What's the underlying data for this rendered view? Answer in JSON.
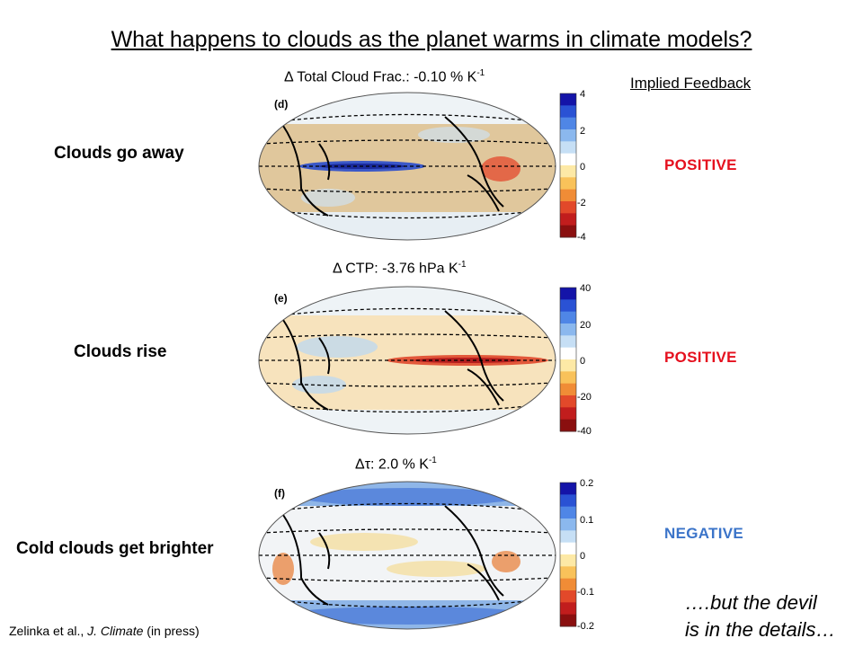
{
  "title": "What happens to clouds as the planet warms in climate models?",
  "implied_feedback_heading": "Implied Feedback",
  "panels": [
    {
      "tag": "(d)",
      "label": "Clouds go away",
      "delta_text": "Δ Total Cloud Frac.: -0.10 % K",
      "delta_exp": "-1",
      "feedback": "POSITIVE",
      "feedback_color": "#e5101e",
      "colorbar_ticks": [
        "4",
        "2",
        "0",
        "-2",
        "-4"
      ]
    },
    {
      "tag": "(e)",
      "label": "Clouds rise",
      "delta_text": "Δ CTP: -3.76 hPa K",
      "delta_exp": "-1",
      "feedback": "POSITIVE",
      "feedback_color": "#e5101e",
      "colorbar_ticks": [
        "40",
        "20",
        "0",
        "-20",
        "-40"
      ]
    },
    {
      "tag": "(f)",
      "label": "Cold clouds get brighter",
      "delta_text": "Δτ: 2.0 % K",
      "delta_exp": "-1",
      "feedback": "NEGATIVE",
      "feedback_color": "#3b74c9",
      "colorbar_ticks": [
        "0.2",
        "0.1",
        "0",
        "-0.1",
        "-0.2"
      ]
    }
  ],
  "note": {
    "line1": "….but the devil",
    "line2": "is in the details…"
  },
  "citation": {
    "authors": "Zelinka et al., ",
    "journal": "J. Climate",
    "status": " (in press)"
  },
  "colorbar_colors": [
    "#1414a8",
    "#2a52d4",
    "#4f86e6",
    "#8bb8ee",
    "#c6dff5",
    "#ffffff",
    "#fde9a6",
    "#f9c25a",
    "#f08c36",
    "#e2492a",
    "#c11d1d",
    "#8a0f0f"
  ]
}
